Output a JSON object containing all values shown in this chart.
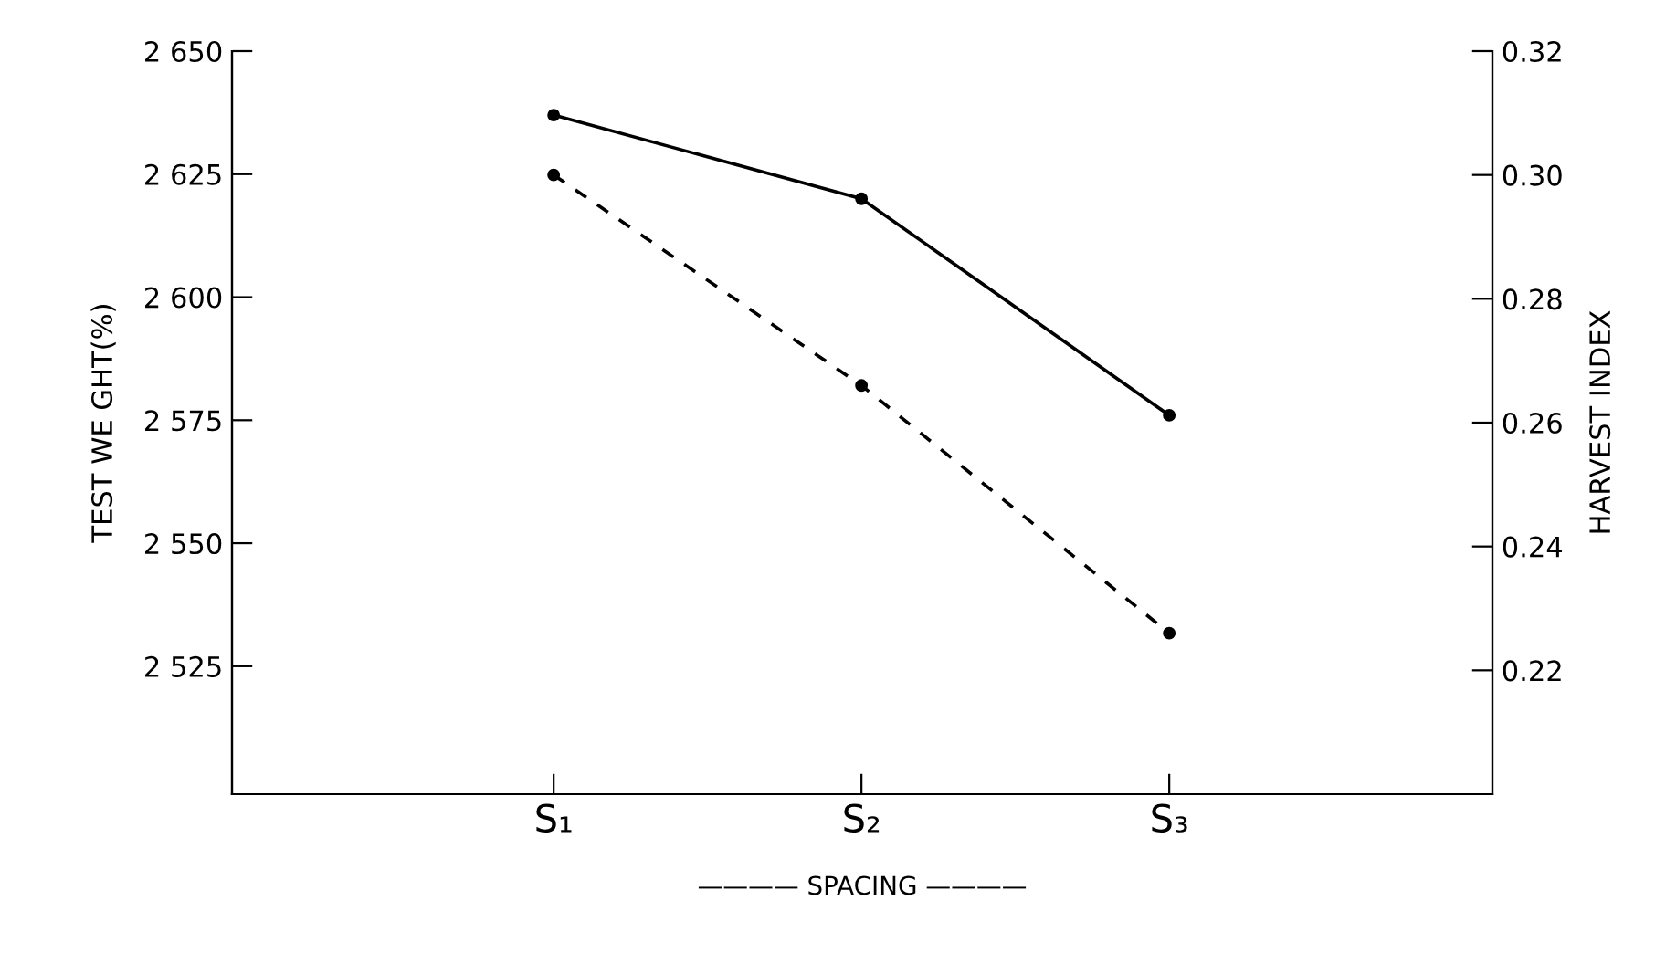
{
  "chart_data": {
    "type": "line",
    "xlabel": "———— SPACING ————",
    "ylabel": "TEST WE GHT(%)",
    "y2label": "HARVEST INDEX",
    "categories": [
      "S₁",
      "S₂",
      "S₃"
    ],
    "series": [
      {
        "color": "#000000",
        "values": [
          2637,
          2620,
          2576
        ],
        "line_style": "solid"
      },
      {
        "color": "#000000",
        "values": [
          0.3,
          0.266,
          0.226
        ],
        "axis": "y2",
        "line_style": "dashed"
      }
    ],
    "ylim": [
      2499,
      2650
    ],
    "yticks": [
      {
        "value": 2650,
        "label": "2 650"
      },
      {
        "value": 2625,
        "label": "2 625"
      },
      {
        "value": 2600,
        "label": "2 600"
      },
      {
        "value": 2575,
        "label": "2 575"
      },
      {
        "value": 2550,
        "label": "2 550"
      },
      {
        "value": 2525,
        "label": "2 525"
      }
    ],
    "y2lim": [
      0.2,
      0.32
    ],
    "y2ticks": [
      {
        "value": 0.32,
        "label": "0.32"
      },
      {
        "value": 0.3,
        "label": "0.30"
      },
      {
        "value": 0.28,
        "label": "0.28"
      },
      {
        "value": 0.26,
        "label": "0.26"
      },
      {
        "value": 0.24,
        "label": "0.24"
      },
      {
        "value": 0.22,
        "label": "0.22"
      }
    ],
    "marker": "circle",
    "grid": false,
    "legend": false
  }
}
